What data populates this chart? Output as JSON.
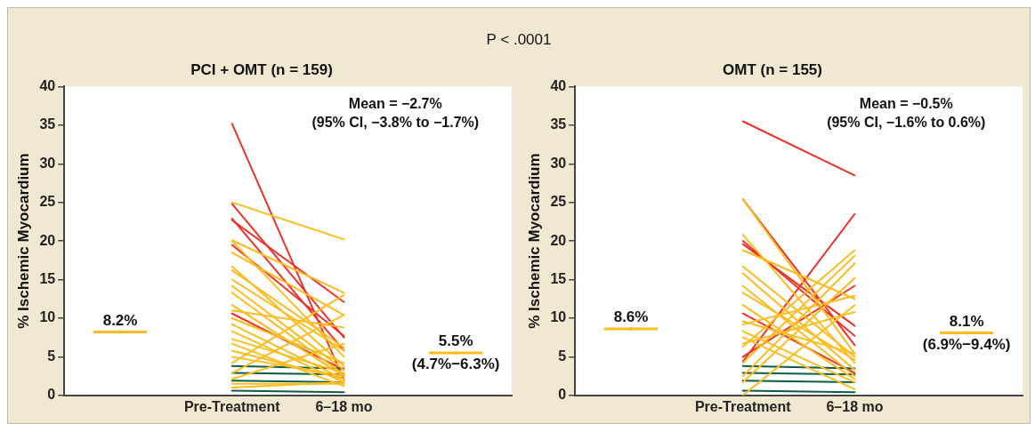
{
  "chart_data": [
    {
      "type": "line",
      "title": "PCI + OMT (n = 159)",
      "subtitle": "P < .0001",
      "ylabel": "% Ischemic Myocardium",
      "categories": [
        null,
        "Pre-Treatment",
        "6–18 mo",
        null
      ],
      "ylim": [
        0,
        40
      ],
      "yticks": [
        0,
        5,
        10,
        15,
        20,
        25,
        30,
        35,
        40
      ],
      "grid": false,
      "legend": false,
      "marker": "none",
      "line_style": "solid",
      "annotations": [
        "Mean = −2.7%\n(95% CI, −3.8% to −1.7%)"
      ],
      "series": [
        {
          "type": "scatter",
          "marker": "square",
          "color": "#fdbc1e",
          "values": [
            8.2,
            null,
            null,
            5.5
          ],
          "value_labels": [
            "8.2%",
            null,
            null,
            "5.5%\n(4.7%−6.3%)"
          ]
        },
        {
          "color": "#fdbc1e",
          "values": [
            null,
            25.0,
            20.2,
            null
          ]
        },
        {
          "color": "#fdbc1e",
          "values": [
            null,
            20.1,
            13.3,
            null
          ]
        },
        {
          "color": "#fdbc1e",
          "values": [
            null,
            20.0,
            5.0,
            null
          ]
        },
        {
          "color": "#fdbc1e",
          "values": [
            null,
            18.5,
            10.4,
            null
          ]
        },
        {
          "color": "#fdbc1e",
          "values": [
            null,
            16.7,
            3.8,
            null
          ]
        },
        {
          "color": "#fdbc1e",
          "values": [
            null,
            16.2,
            6.2,
            null
          ]
        },
        {
          "color": "#fdbc1e",
          "values": [
            null,
            15.0,
            5.8,
            null
          ]
        },
        {
          "color": "#fdbc1e",
          "values": [
            null,
            14.2,
            3.3,
            null
          ]
        },
        {
          "color": "#fdbc1e",
          "values": [
            null,
            13.3,
            2.7,
            null
          ]
        },
        {
          "color": "#fdbc1e",
          "values": [
            null,
            11.7,
            2.5,
            null
          ]
        },
        {
          "color": "#fdbc1e",
          "values": [
            null,
            11.0,
            8.8,
            null
          ]
        },
        {
          "color": "#fdbc1e",
          "values": [
            null,
            10.0,
            4.2,
            null
          ]
        },
        {
          "color": "#fdbc1e",
          "values": [
            null,
            9.2,
            2.1,
            null
          ]
        },
        {
          "color": "#fdbc1e",
          "values": [
            null,
            8.3,
            1.7,
            null
          ]
        },
        {
          "color": "#fdbc1e",
          "values": [
            null,
            7.3,
            2.9,
            null
          ]
        },
        {
          "color": "#fdbc1e",
          "values": [
            null,
            6.7,
            1.2,
            null
          ]
        },
        {
          "color": "#fdbc1e",
          "values": [
            null,
            5.8,
            2.1,
            null
          ]
        },
        {
          "color": "#fdbc1e",
          "values": [
            null,
            5.0,
            2.5,
            null
          ]
        },
        {
          "color": "#fdbc1e",
          "values": [
            null,
            4.2,
            13.0,
            null
          ]
        },
        {
          "color": "#fdbc1e",
          "values": [
            null,
            2.9,
            10.4,
            null
          ]
        },
        {
          "color": "#fdbc1e",
          "values": [
            null,
            2.1,
            6.7,
            null
          ]
        },
        {
          "color": "#fdbc1e",
          "values": [
            null,
            1.5,
            1.5,
            null
          ]
        },
        {
          "color": "#fdbc1e",
          "values": [
            null,
            1.0,
            1.7,
            null
          ]
        },
        {
          "color": "#0b5e3f",
          "values": [
            null,
            3.8,
            3.5,
            null
          ]
        },
        {
          "color": "#0b5e3f",
          "values": [
            null,
            2.9,
            2.7,
            null
          ]
        },
        {
          "color": "#0b5e3f",
          "values": [
            null,
            1.9,
            1.7,
            null
          ]
        },
        {
          "color": "#0b5e3f",
          "values": [
            null,
            0.6,
            0.4,
            null
          ]
        },
        {
          "color": "#ec3327",
          "values": [
            null,
            35.2,
            2.0,
            null
          ]
        },
        {
          "color": "#ec3327",
          "values": [
            null,
            24.8,
            7.5,
            null
          ]
        },
        {
          "color": "#ec3327",
          "values": [
            null,
            22.7,
            12.1,
            null
          ]
        },
        {
          "color": "#ec3327",
          "values": [
            null,
            22.9,
            5.8,
            null
          ]
        },
        {
          "color": "#ec3327",
          "values": [
            null,
            19.5,
            7.7,
            null
          ]
        },
        {
          "color": "#ec3327",
          "values": [
            null,
            10.6,
            3.3,
            null
          ]
        }
      ]
    },
    {
      "type": "line",
      "title": "OMT (n = 155)",
      "ylabel": "% Ischemic Myocardium",
      "categories": [
        null,
        "Pre-Treatment",
        "6–18 mo",
        null
      ],
      "ylim": [
        0,
        40
      ],
      "yticks": [
        0,
        5,
        10,
        15,
        20,
        25,
        30,
        35,
        40
      ],
      "grid": false,
      "legend": false,
      "marker": "none",
      "line_style": "solid",
      "annotations": [
        "Mean = −0.5%\n(95% CI, −1.6% to 0.6%)"
      ],
      "series": [
        {
          "type": "scatter",
          "marker": "square",
          "color": "#fdbc1e",
          "values": [
            8.6,
            null,
            null,
            8.1
          ],
          "value_labels": [
            "8.6%",
            null,
            null,
            "8.1%\n(6.9%−9.4%)"
          ]
        },
        {
          "color": "#fdbc1e",
          "values": [
            null,
            25.4,
            5.4,
            null
          ]
        },
        {
          "color": "#fdbc1e",
          "values": [
            null,
            20.8,
            4.2,
            null
          ]
        },
        {
          "color": "#fdbc1e",
          "values": [
            null,
            18.8,
            12.5,
            null
          ]
        },
        {
          "color": "#fdbc1e",
          "values": [
            null,
            16.7,
            5.0,
            null
          ]
        },
        {
          "color": "#fdbc1e",
          "values": [
            null,
            15.8,
            3.3,
            null
          ]
        },
        {
          "color": "#fdbc1e",
          "values": [
            null,
            14.2,
            2.5,
            null
          ]
        },
        {
          "color": "#fdbc1e",
          "values": [
            null,
            13.3,
            4.6,
            null
          ]
        },
        {
          "color": "#fdbc1e",
          "values": [
            null,
            11.7,
            2.1,
            null
          ]
        },
        {
          "color": "#fdbc1e",
          "values": [
            null,
            9.6,
            5.4,
            null
          ]
        },
        {
          "color": "#fdbc1e",
          "values": [
            null,
            9.2,
            12.9,
            null
          ]
        },
        {
          "color": "#fdbc1e",
          "values": [
            null,
            8.3,
            1.7,
            null
          ]
        },
        {
          "color": "#fdbc1e",
          "values": [
            null,
            7.5,
            0.8,
            null
          ]
        },
        {
          "color": "#fdbc1e",
          "values": [
            null,
            6.7,
            10.8,
            null
          ]
        },
        {
          "color": "#fdbc1e",
          "values": [
            null,
            6.3,
            18.8,
            null
          ]
        },
        {
          "color": "#fdbc1e",
          "values": [
            null,
            4.2,
            18.1,
            null
          ]
        },
        {
          "color": "#fdbc1e",
          "values": [
            null,
            2.5,
            17.1,
            null
          ]
        },
        {
          "color": "#fdbc1e",
          "values": [
            null,
            1.7,
            15.2,
            null
          ]
        },
        {
          "color": "#fdbc1e",
          "values": [
            null,
            0,
            11.7,
            null
          ]
        },
        {
          "color": "#0b5e3f",
          "values": [
            null,
            3.8,
            3.5,
            null
          ]
        },
        {
          "color": "#0b5e3f",
          "values": [
            null,
            2.9,
            2.7,
            null
          ]
        },
        {
          "color": "#0b5e3f",
          "values": [
            null,
            1.9,
            1.7,
            null
          ]
        },
        {
          "color": "#0b5e3f",
          "values": [
            null,
            0.6,
            0.4,
            null
          ]
        },
        {
          "color": "#ec3327",
          "values": [
            null,
            35.5,
            28.5,
            null
          ]
        },
        {
          "color": "#ec3327",
          "values": [
            null,
            25.4,
            6.5,
            null
          ]
        },
        {
          "color": "#ec3327",
          "values": [
            null,
            19.6,
            9.0,
            null
          ]
        },
        {
          "color": "#ec3327",
          "values": [
            null,
            20.0,
            7.7,
            null
          ]
        },
        {
          "color": "#ec3327",
          "values": [
            null,
            10.6,
            2.9,
            null
          ]
        },
        {
          "color": "#ec3327",
          "values": [
            null,
            5.0,
            14.2,
            null
          ]
        },
        {
          "color": "#ec3327",
          "values": [
            null,
            4.4,
            23.5,
            null
          ]
        }
      ]
    }
  ]
}
